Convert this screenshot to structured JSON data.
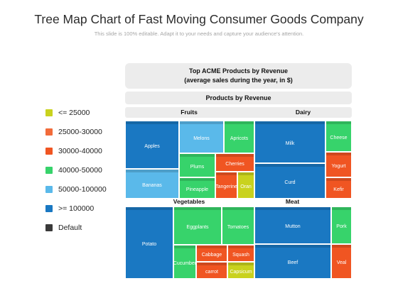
{
  "title": "Tree Map Chart of Fast Moving Consumer Goods Company",
  "subtitle": "This slide is 100% editable. Adapt it to your needs and capture your audience's attention.",
  "legend": [
    {
      "label": "<= 25000",
      "color": "#c9d21e"
    },
    {
      "label": "25000-30000",
      "color": "#f26b3a"
    },
    {
      "label": "30000-40000",
      "color": "#f05522"
    },
    {
      "label": "40000-50000",
      "color": "#37d36b"
    },
    {
      "label": "50000-100000",
      "color": "#5ab9ea"
    },
    {
      "label": ">= 100000",
      "color": "#1a78c2"
    },
    {
      "label": "Default",
      "color": "#3a3a3a"
    }
  ],
  "header": {
    "top_line1": "Top ACME Products by Revenue",
    "top_line2": "(average sales during the year, in $)",
    "sub": "Products by Revenue"
  },
  "chart_data": {
    "type": "treemap",
    "title": "Top ACME Products by Revenue (average sales during the year, in $)",
    "root": "Products by Revenue",
    "groups": [
      {
        "name": "Fruits",
        "items": [
          {
            "name": "Apples",
            "range": ">= 100000"
          },
          {
            "name": "Bananas",
            "range": "50000-100000"
          },
          {
            "name": "Melons",
            "range": "50000-100000"
          },
          {
            "name": "Apricots",
            "range": "40000-50000"
          },
          {
            "name": "Plums",
            "range": "40000-50000"
          },
          {
            "name": "Cherries",
            "range": "30000-40000"
          },
          {
            "name": "Pineapple",
            "range": "40000-50000"
          },
          {
            "name": "Tangerine",
            "range": "30000-40000"
          },
          {
            "name": "Oran",
            "range": "<= 25000"
          }
        ]
      },
      {
        "name": "Dairy",
        "items": [
          {
            "name": "Milk",
            "range": ">= 100000"
          },
          {
            "name": "Curd",
            "range": ">= 100000"
          },
          {
            "name": "Cheese",
            "range": "40000-50000"
          },
          {
            "name": "Yogurt",
            "range": "30000-40000"
          },
          {
            "name": "Kefir",
            "range": "30000-40000"
          }
        ]
      },
      {
        "name": "Vegetables",
        "items": [
          {
            "name": "Potato",
            "range": ">= 100000"
          },
          {
            "name": "Eggplants",
            "range": "40000-50000"
          },
          {
            "name": "Tomatoes",
            "range": "40000-50000"
          },
          {
            "name": "Cucumber",
            "range": "40000-50000"
          },
          {
            "name": "Cabbage",
            "range": "30000-40000"
          },
          {
            "name": "Squash",
            "range": "30000-40000"
          },
          {
            "name": "carrot",
            "range": "30000-40000"
          },
          {
            "name": "Capsicum",
            "range": "<= 25000"
          }
        ]
      },
      {
        "name": "Meat",
        "items": [
          {
            "name": "Mutton",
            "range": ">= 100000"
          },
          {
            "name": "Beef",
            "range": ">= 100000"
          },
          {
            "name": "Pork",
            "range": "40000-50000"
          },
          {
            "name": "Veal",
            "range": "30000-40000"
          }
        ]
      }
    ]
  }
}
